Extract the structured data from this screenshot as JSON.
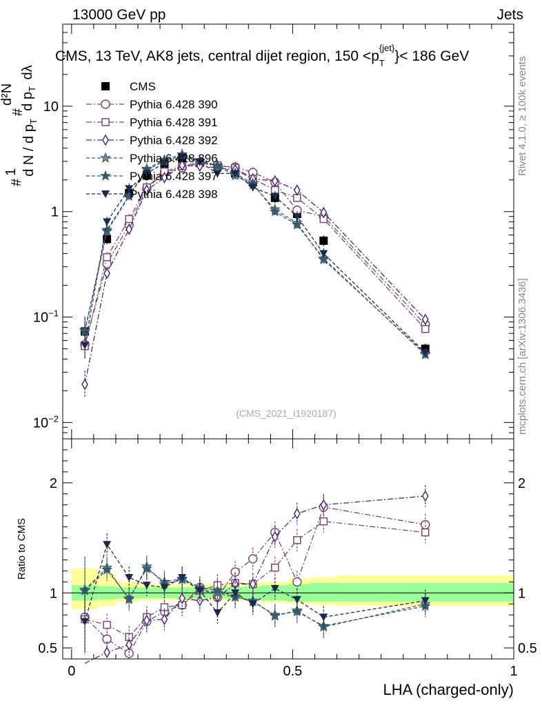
{
  "header": {
    "left": "13000 GeV pp",
    "right": "Jets"
  },
  "side_labels": {
    "rivet": "Rivet 4.1.0, ≥ 100k events",
    "mcplots": "mcplots.cern.ch [arXiv:1306.3436]"
  },
  "chart_data": [
    {
      "type": "line",
      "panel": "main",
      "title": "CMS, 13 TeV, AK8 jets, central dijet region, 150 < p_T^{jet} < 186 GeV",
      "watermark": "(CMS_2021_I1920187)",
      "ylabel": "1/(dN/dpT) d²N/(dpT dλ)",
      "yscale": "log",
      "ylim": [
        0.007,
        60
      ],
      "xlim": [
        -0.02,
        1.0
      ],
      "yticks": [
        {
          "v": 0.01,
          "label": "10⁻²"
        },
        {
          "v": 0.1,
          "label": "10⁻¹"
        },
        {
          "v": 1,
          "label": "1"
        },
        {
          "v": 10,
          "label": "10"
        }
      ],
      "x": [
        0.03,
        0.08,
        0.13,
        0.17,
        0.21,
        0.25,
        0.29,
        0.33,
        0.37,
        0.41,
        0.46,
        0.51,
        0.57,
        0.8
      ],
      "legend_position": "top-left",
      "series": [
        {
          "name": "CMS",
          "marker": "square-filled",
          "color": "#000000",
          "style": "none",
          "values": [
            0.073,
            0.55,
            1.5,
            2.2,
            2.8,
            3.1,
            2.9,
            2.7,
            2.3,
            1.9,
            1.35,
            0.95,
            0.53,
            0.05
          ]
        },
        {
          "name": "Pythia 6.428 390",
          "marker": "circle-open",
          "color": "#7a4a6e",
          "style": "dashdot",
          "values": [
            0.055,
            0.32,
            0.75,
            1.65,
            2.35,
            2.6,
            2.9,
            2.7,
            2.65,
            2.35,
            1.9,
            1.03,
            0.9,
            0.085
          ]
        },
        {
          "name": "Pythia 6.428 391",
          "marker": "square-open",
          "color": "#7a4a6e",
          "style": "dashdot",
          "values": [
            0.053,
            0.37,
            0.85,
            1.7,
            2.4,
            2.7,
            2.95,
            2.75,
            2.6,
            2.05,
            1.6,
            1.35,
            0.85,
            0.077
          ]
        },
        {
          "name": "Pythia 6.428 392",
          "marker": "diamond-open",
          "color": "#4b2a7a",
          "style": "dashdot",
          "values": [
            0.023,
            0.26,
            0.68,
            1.6,
            2.1,
            2.75,
            2.7,
            2.6,
            2.5,
            2.05,
            1.95,
            1.6,
            0.98,
            0.095
          ]
        },
        {
          "name": "Pythia 6.428 396",
          "marker": "star-open",
          "color": "#3a5a6e",
          "style": "dashed",
          "values": [
            0.073,
            0.65,
            1.4,
            2.5,
            3.0,
            3.4,
            3.0,
            2.7,
            2.2,
            1.8,
            1.05,
            0.78,
            0.35,
            0.045
          ]
        },
        {
          "name": "Pythia 6.428 397",
          "marker": "star-filled",
          "color": "#3a5a6e",
          "style": "dashed",
          "values": [
            0.075,
            0.67,
            1.42,
            2.55,
            3.1,
            3.5,
            3.05,
            2.75,
            2.3,
            1.85,
            1.0,
            0.75,
            0.36,
            0.044
          ]
        },
        {
          "name": "Pythia 6.428 398",
          "marker": "triangle-down-filled",
          "color": "#1e2a4a",
          "style": "dashed",
          "values": [
            0.054,
            0.8,
            1.65,
            2.3,
            2.9,
            3.3,
            2.95,
            2.3,
            2.3,
            1.7,
            1.4,
            0.9,
            0.4,
            0.046
          ]
        }
      ]
    },
    {
      "type": "line",
      "panel": "ratio",
      "ylabel": "Ratio to CMS",
      "xlabel": "LHA (charged-only)",
      "ylim": [
        0.4,
        2.4
      ],
      "xlim": [
        -0.02,
        1.0
      ],
      "yticks": [
        {
          "v": 0.5,
          "label": "0.5"
        },
        {
          "v": 1,
          "label": "1"
        },
        {
          "v": 2,
          "label": "2"
        }
      ],
      "xticks": [
        {
          "v": 0,
          "label": "0"
        },
        {
          "v": 0.5,
          "label": "0.5"
        },
        {
          "v": 1,
          "label": "1"
        }
      ],
      "x": [
        0.03,
        0.08,
        0.13,
        0.17,
        0.21,
        0.25,
        0.29,
        0.33,
        0.37,
        0.41,
        0.46,
        0.51,
        0.57,
        0.8
      ],
      "band_edges": [
        0.0,
        0.06,
        0.1,
        0.15,
        0.19,
        0.23,
        0.27,
        0.31,
        0.35,
        0.39,
        0.43,
        0.49,
        0.54,
        0.6,
        1.0
      ],
      "band_inner": [
        [
          0.93,
          1.07
        ],
        [
          0.94,
          1.06
        ],
        [
          0.95,
          1.05
        ],
        [
          0.95,
          1.05
        ],
        [
          0.95,
          1.05
        ],
        [
          0.95,
          1.05
        ],
        [
          0.95,
          1.05
        ],
        [
          0.95,
          1.05
        ],
        [
          0.95,
          1.05
        ],
        [
          0.94,
          1.06
        ],
        [
          0.93,
          1.07
        ],
        [
          0.92,
          1.08
        ],
        [
          0.92,
          1.09
        ],
        [
          0.92,
          1.09
        ]
      ],
      "band_outer": [
        [
          0.85,
          1.22
        ],
        [
          0.88,
          1.17
        ],
        [
          0.92,
          1.1
        ],
        [
          0.93,
          1.08
        ],
        [
          0.93,
          1.08
        ],
        [
          0.93,
          1.08
        ],
        [
          0.93,
          1.08
        ],
        [
          0.93,
          1.08
        ],
        [
          0.93,
          1.08
        ],
        [
          0.93,
          1.09
        ],
        [
          0.91,
          1.1
        ],
        [
          0.9,
          1.13
        ],
        [
          0.89,
          1.14
        ],
        [
          0.88,
          1.16
        ]
      ],
      "series": [
        {
          "name": "Pythia 6.428 390",
          "values": [
            0.78,
            0.58,
            0.45,
            0.74,
            0.83,
            0.89,
            1.05,
            0.96,
            1.19,
            1.31,
            1.55,
            1.1,
            1.78,
            1.62
          ]
        },
        {
          "name": "Pythia 6.428 391",
          "values": [
            0.76,
            0.71,
            0.6,
            0.78,
            0.87,
            0.89,
            1.02,
            1.07,
            1.09,
            1.08,
            1.23,
            1.48,
            1.65,
            1.55
          ]
        },
        {
          "name": "Pythia 6.428 392",
          "values": [
            0.32,
            0.46,
            0.53,
            0.75,
            0.76,
            0.95,
            0.93,
            0.96,
            1.08,
            1.08,
            1.51,
            1.72,
            1.8,
            1.88
          ]
        },
        {
          "name": "Pythia 6.428 396",
          "values": [
            1.03,
            1.23,
            0.94,
            1.24,
            1.08,
            1.12,
            1.03,
            1.0,
            0.96,
            0.93,
            0.79,
            0.84,
            0.69,
            0.9
          ]
        },
        {
          "name": "Pythia 6.428 397",
          "values": [
            1.02,
            1.21,
            0.95,
            1.22,
            1.1,
            1.13,
            1.05,
            1.02,
            0.97,
            0.92,
            0.8,
            0.83,
            0.7,
            0.88
          ]
        },
        {
          "name": "Pythia 6.428 398",
          "values": [
            0.74,
            1.44,
            1.14,
            1.07,
            1.05,
            1.14,
            1.02,
            0.82,
            1.0,
            0.9,
            1.04,
            0.94,
            0.78,
            0.93
          ]
        }
      ]
    }
  ]
}
